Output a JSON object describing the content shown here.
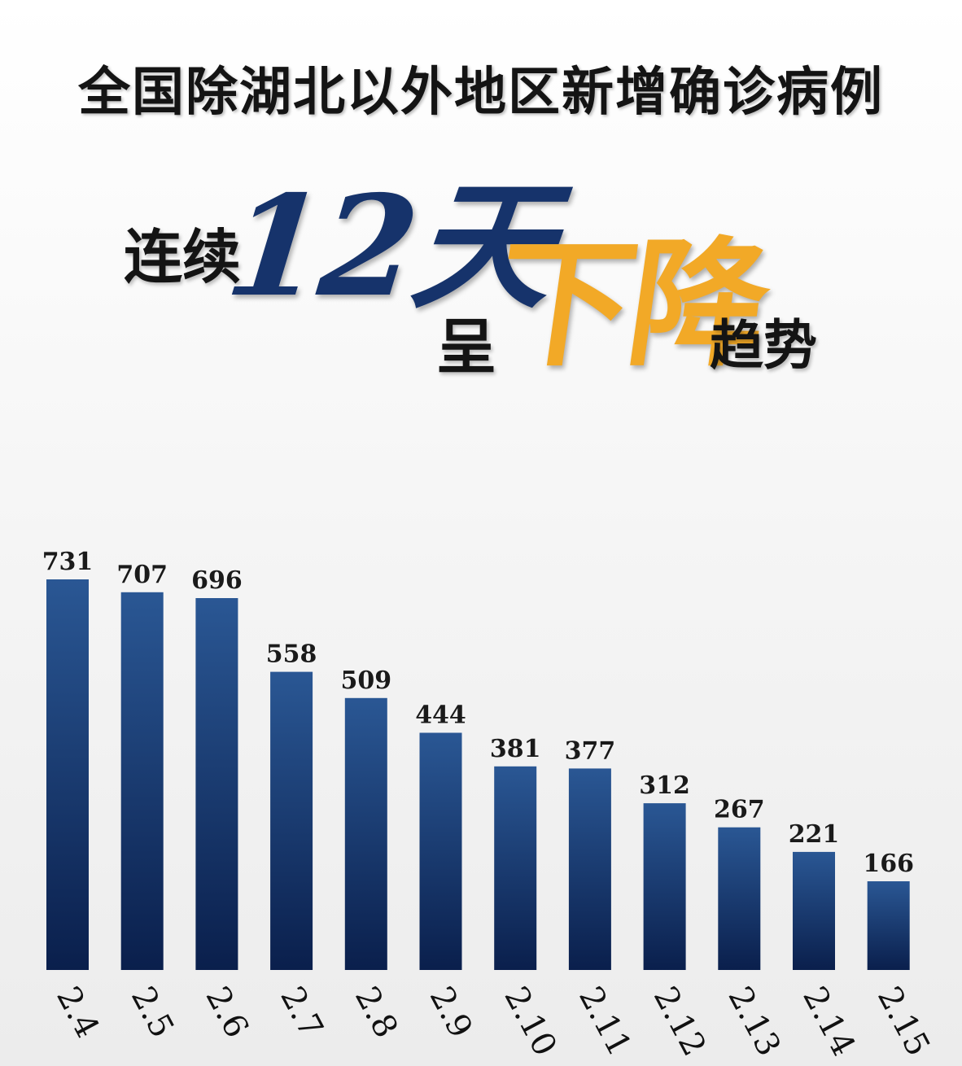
{
  "title": "全国除湖北以外地区新增确诊病例",
  "headline": {
    "part1": "连续",
    "days": "12天",
    "part2": "呈",
    "highlight": "下降",
    "part3": "趋势"
  },
  "colors": {
    "bar_top": "#2a5794",
    "bar_bottom": "#0a1f4c",
    "days_color": "#16336b",
    "highlight_color": "#f2a927"
  },
  "chart_data": {
    "type": "bar",
    "categories": [
      "2.4",
      "2.5",
      "2.6",
      "2.7",
      "2.8",
      "2.9",
      "2.10",
      "2.11",
      "2.12",
      "2.13",
      "2.14",
      "2.15"
    ],
    "values": [
      731,
      707,
      696,
      558,
      509,
      444,
      381,
      377,
      312,
      267,
      221,
      166
    ],
    "title": "全国除湖北以外地区新增确诊病例",
    "xlabel": "",
    "ylabel": "",
    "ylim": [
      0,
      731
    ],
    "grid": false,
    "data_labels": true,
    "tick_label_rotation": "diagonal"
  }
}
